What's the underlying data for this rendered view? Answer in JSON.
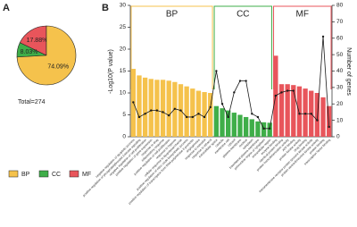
{
  "chart_data": [
    {
      "type": "pie",
      "panel_label": "A",
      "categories": [
        "BP",
        "CC",
        "MF"
      ],
      "values": [
        74.09,
        8.03,
        17.88
      ],
      "value_labels": [
        "74.09%",
        "8.03%",
        "17.88%"
      ],
      "colors": [
        "#f5c24c",
        "#3fae49",
        "#e8555b"
      ],
      "annotation": "Total=274"
    },
    {
      "type": "bar",
      "panel_label": "B",
      "ylabel": "-Log10(P value)",
      "y2label": "Number of genes",
      "ylim": [
        0,
        30
      ],
      "yticks": [
        0,
        5,
        10,
        15,
        20,
        25,
        30
      ],
      "y2lim": [
        0,
        80
      ],
      "y2ticks": [
        0,
        10,
        20,
        30,
        40,
        50,
        60,
        70,
        80
      ],
      "line_color": "#1a1a1a",
      "groups": [
        {
          "name": "BP",
          "color": "#f5c24c",
          "categories": [
            "negative regulation of apoptotic process",
            "positive regulation of phosphatidylinositol 3-kinase signaling",
            "negative regulation of cell proliferation",
            "positive regulation of gene expression",
            "response to drug",
            "inflammatory response",
            "positive regulation of cell proliferation",
            "response to hypoxia",
            "cellular response to lipopolysaccharide",
            "positive regulation of nitric oxide biosynthetic process",
            "positive regulation of transcription from RNA polymerase II promoter",
            "angiogenesis",
            "response to estradiol",
            "response to ethanol"
          ],
          "values": [
            15.5,
            14,
            13.5,
            13.2,
            13,
            13,
            12.8,
            12.5,
            12,
            11.5,
            11,
            10.5,
            10.2,
            10
          ],
          "genes": [
            21,
            12,
            14,
            16,
            16,
            15,
            13,
            17,
            16,
            12,
            12,
            14,
            12,
            18
          ]
        },
        {
          "name": "CC",
          "color": "#3fae49",
          "categories": [
            "extracellular space",
            "caveola",
            "membrane raft",
            "cytosol",
            "plasma membrane",
            "nucleus",
            "cytoplasm",
            "basolateral plasma membrane",
            "perinuclear region of cytoplasm",
            "extracellular region"
          ],
          "values": [
            7,
            6.5,
            6,
            5.5,
            5,
            4.5,
            4,
            3.5,
            3.3,
            3.2
          ],
          "genes": [
            40,
            20,
            12,
            27,
            34,
            34,
            14,
            12,
            5,
            5
          ]
        },
        {
          "name": "MF",
          "color": "#e8555b",
          "categories": [
            "enzyme binding",
            "identical protein binding",
            "protein homodimerization activity",
            "ATP binding",
            "protein kinase activity",
            "drug binding",
            "transmembrane receptor protein tyrosine kinase activity",
            "protein serine/threonine kinase activity",
            "protein binding",
            "transcription factor binding"
          ],
          "values": [
            18.5,
            12,
            12,
            11.8,
            11.5,
            11,
            10.5,
            10,
            9,
            7
          ],
          "genes": [
            25,
            27,
            28,
            28,
            14,
            14,
            14,
            10,
            61,
            6
          ]
        }
      ]
    }
  ]
}
